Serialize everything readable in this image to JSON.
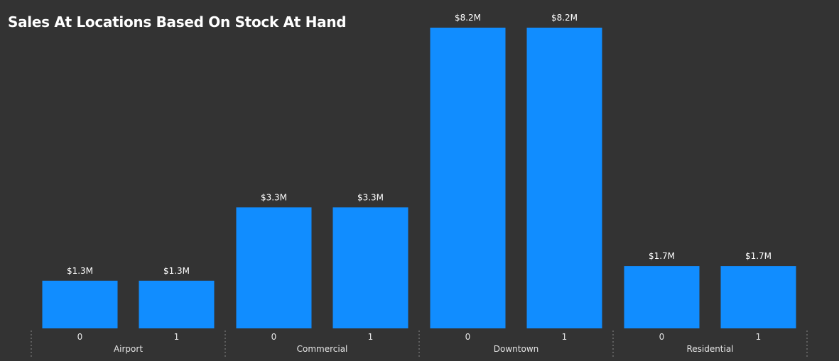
{
  "chart_data": {
    "type": "bar",
    "title": "Sales At Locations Based On Stock At Hand",
    "xlabel": "",
    "ylabel": "",
    "groups": [
      {
        "name": "Airport",
        "categories": [
          "0",
          "1"
        ],
        "values": [
          1.3,
          1.3
        ],
        "labels": [
          "$1.3M",
          "$1.3M"
        ]
      },
      {
        "name": "Commercial",
        "categories": [
          "0",
          "1"
        ],
        "values": [
          3.3,
          3.3
        ],
        "labels": [
          "$3.3M",
          "$3.3M"
        ]
      },
      {
        "name": "Downtown",
        "categories": [
          "0",
          "1"
        ],
        "values": [
          8.2,
          8.2
        ],
        "labels": [
          "$8.2M",
          "$8.2M"
        ]
      },
      {
        "name": "Residential",
        "categories": [
          "0",
          "1"
        ],
        "values": [
          1.7,
          1.7
        ],
        "labels": [
          "$1.7M",
          "$1.7M"
        ]
      }
    ],
    "ylim": [
      0,
      8.2
    ],
    "grid": false,
    "colors": {
      "bar": "#118DFF",
      "background": "#333333",
      "text": "#ffffff",
      "axis_text": "#e6e6e6",
      "separator": "#8a8a8a"
    }
  }
}
